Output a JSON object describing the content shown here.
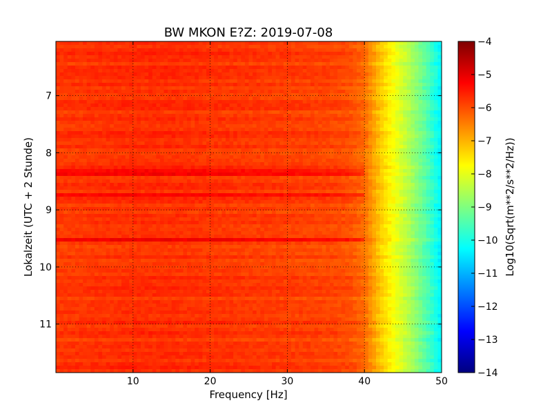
{
  "chart_data": {
    "type": "heatmap",
    "title": "BW MKON E?Z: 2019-07-08",
    "xlabel": "Frequency [Hz]",
    "ylabel": "Lokalzeit (UTC + 2 Stunde)",
    "xlim": [
      0,
      50
    ],
    "ylim": [
      11.85,
      6.05
    ],
    "x_ticks": [
      {
        "value": 10,
        "label": "10"
      },
      {
        "value": 20,
        "label": "20"
      },
      {
        "value": 30,
        "label": "30"
      },
      {
        "value": 40,
        "label": "40"
      },
      {
        "value": 50,
        "label": "50"
      }
    ],
    "y_ticks": [
      {
        "value": 7,
        "label": "7"
      },
      {
        "value": 8,
        "label": "8"
      },
      {
        "value": 9,
        "label": "9"
      },
      {
        "value": 10,
        "label": "10"
      },
      {
        "value": 11,
        "label": "11"
      }
    ],
    "grid": true,
    "colormap": "jet",
    "colorbar": {
      "label": "Log10(Sqrt(m**2/s**2/Hz))",
      "range": [
        -14,
        -4
      ],
      "ticks": [
        {
          "value": -4,
          "label": "−4"
        },
        {
          "value": -5,
          "label": "−5"
        },
        {
          "value": -6,
          "label": "−6"
        },
        {
          "value": -7,
          "label": "−7"
        },
        {
          "value": -8,
          "label": "−8"
        },
        {
          "value": -9,
          "label": "−9"
        },
        {
          "value": -10,
          "label": "−10"
        },
        {
          "value": -11,
          "label": "−11"
        },
        {
          "value": -12,
          "label": "−12"
        },
        {
          "value": -13,
          "label": "−13"
        },
        {
          "value": -14,
          "label": "−14"
        }
      ]
    },
    "spectral_profile": {
      "frequency_hz": [
        0,
        5,
        10,
        15,
        20,
        25,
        30,
        35,
        38,
        40,
        42,
        44,
        46,
        48,
        50
      ],
      "log10_amplitude": [
        -5.8,
        -5.75,
        -5.7,
        -5.7,
        -5.75,
        -5.8,
        -5.85,
        -5.9,
        -6.0,
        -6.3,
        -7.2,
        -7.9,
        -8.6,
        -9.4,
        -10.4
      ]
    },
    "strong_bands": [
      {
        "time": 8.35,
        "log10_amplitude": -4.9
      },
      {
        "time": 9.53,
        "log10_amplitude": -5.0
      },
      {
        "time": 8.72,
        "log10_amplitude": -5.1
      }
    ]
  }
}
